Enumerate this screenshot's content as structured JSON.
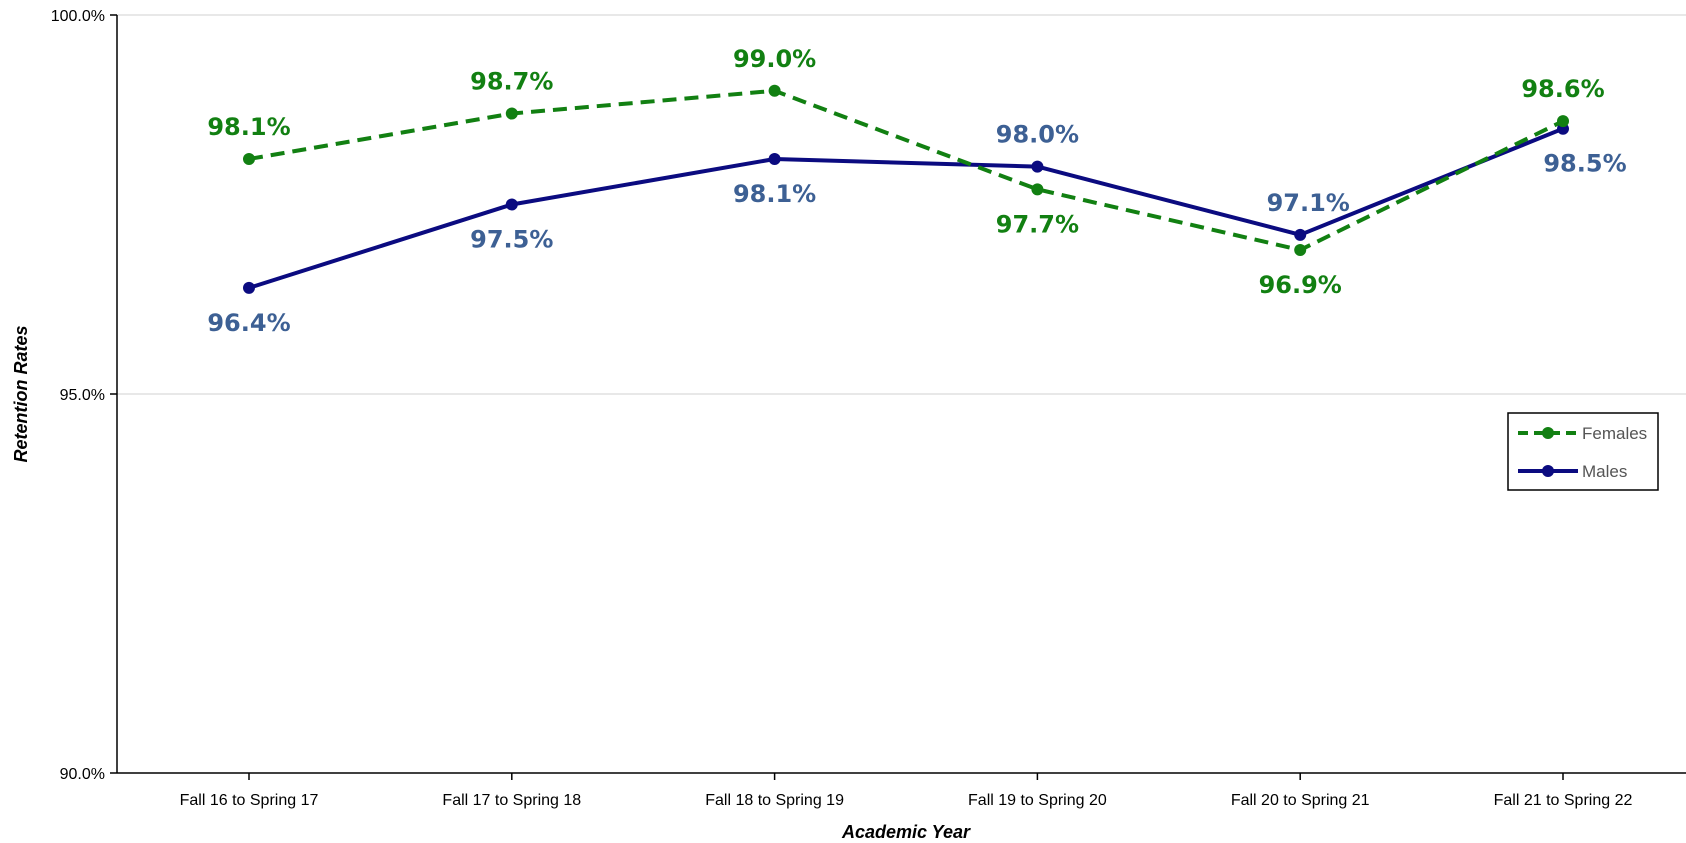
{
  "chart_data": {
    "type": "line",
    "title": "",
    "xlabel": "Academic Year",
    "ylabel": "Retention Rates",
    "ylim": [
      90,
      100
    ],
    "yticks": [
      "90.0%",
      "95.0%",
      "100.0%"
    ],
    "ytick_values": [
      90,
      95,
      100
    ],
    "categories": [
      "Fall 16 to Spring 17",
      "Fall 17 to Spring 18",
      "Fall 18 to Spring 19",
      "Fall 19 to Spring 20",
      "Fall 20 to Spring 21",
      "Fall 21 to Spring 22"
    ],
    "series": [
      {
        "name": "Females",
        "values": [
          98.1,
          98.7,
          99.0,
          97.7,
          96.9,
          98.6
        ],
        "labels": [
          "98.1%",
          "98.7%",
          "99.0%",
          "97.7%",
          "96.9%",
          "98.6%"
        ],
        "color": "#128012",
        "label_color": "#128012",
        "line_style": "dashed"
      },
      {
        "name": "Males",
        "values": [
          96.4,
          97.5,
          98.1,
          98.0,
          97.1,
          98.5
        ],
        "labels": [
          "96.4%",
          "97.5%",
          "98.1%",
          "98.0%",
          "97.1%",
          "98.5%"
        ],
        "color": "#0b0b80",
        "label_color": "#3d6094",
        "line_style": "solid"
      }
    ],
    "grid": true,
    "legend_position": "right"
  }
}
